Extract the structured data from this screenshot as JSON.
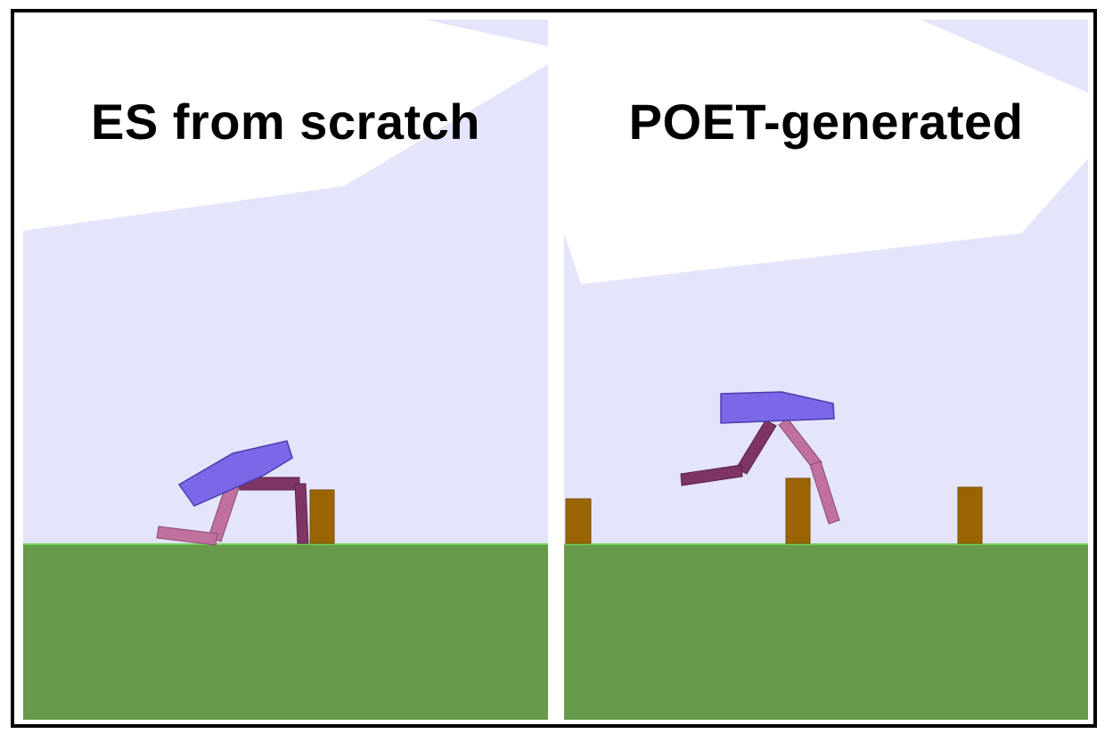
{
  "panels": [
    {
      "title": "ES from scratch",
      "environment": "bipedal-walker-stump-terrain"
    },
    {
      "title": "POET-generated",
      "environment": "bipedal-walker-stump-terrain"
    }
  ],
  "colors": {
    "sky": "#e4e4fb",
    "cloud": "#ffffff",
    "ground": "#679a4a",
    "ground_edge": "#6fd05a",
    "stump": "#9a6400",
    "hull": "#7b68e8",
    "leg_near": "#7e3566",
    "leg_far": "#c0709d",
    "frame": "#000000"
  }
}
